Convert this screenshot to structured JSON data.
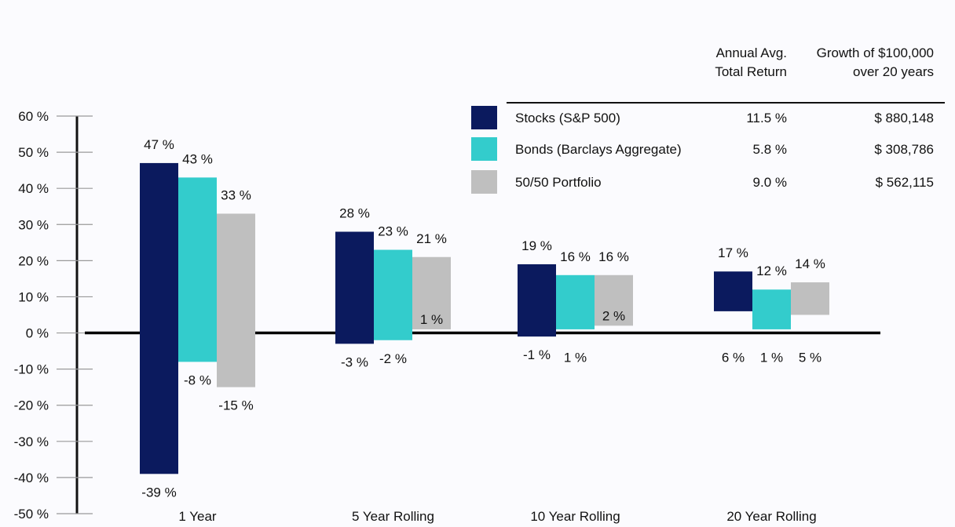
{
  "chart_data": {
    "type": "floating-bar",
    "title": "",
    "xlabel": "",
    "ylabel": "",
    "ylim": [
      -50,
      60
    ],
    "yticks": [
      "60 %",
      "50 %",
      "40 %",
      "30 %",
      "20 %",
      "10 %",
      "0 %",
      "-10 %",
      "-20 %",
      "-30 %",
      "-40 %",
      "-50 %"
    ],
    "categories": [
      "1 Year",
      "5 Year Rolling",
      "10 Year Rolling",
      "20 Year Rolling"
    ],
    "series": [
      {
        "name": "Stocks (S&P 500)",
        "color": "#0b1a5e",
        "highs": [
          47,
          28,
          19,
          17
        ],
        "lows": [
          -39,
          -3,
          -1,
          6
        ],
        "high_labels": [
          "47 %",
          "28 %",
          "19 %",
          "17 %"
        ],
        "low_labels": [
          "-39 %",
          "-3 %",
          "-1 %",
          "6 %"
        ]
      },
      {
        "name": "Bonds (Barclays Aggregate)",
        "color": "#33cccc",
        "highs": [
          43,
          23,
          16,
          12
        ],
        "lows": [
          -8,
          -2,
          1,
          1
        ],
        "high_labels": [
          "43 %",
          "23 %",
          "16 %",
          "12 %"
        ],
        "low_labels": [
          "-8 %",
          "-2 %",
          "1 %",
          "1 %"
        ]
      },
      {
        "name": "50/50 Portfolio",
        "color": "#bfbfbf",
        "highs": [
          33,
          21,
          16,
          14
        ],
        "lows": [
          -15,
          1,
          2,
          5
        ],
        "high_labels": [
          "33 %",
          "21 %",
          "16 %",
          "14 %"
        ],
        "low_labels": [
          "-15 %",
          "1 %",
          "2 %",
          "5 %"
        ]
      }
    ],
    "legend_table": {
      "header_return": [
        "Annual Avg.",
        "Total Return"
      ],
      "header_growth": [
        "Growth of $100,000",
        "over 20 years"
      ],
      "rows": [
        {
          "name": "Stocks (S&P 500)",
          "return": "11.5 %",
          "growth": "$ 880,148"
        },
        {
          "name": "Bonds (Barclays Aggregate)",
          "return": "5.8 %",
          "growth": "$ 308,786"
        },
        {
          "name": "50/50 Portfolio",
          "return": "9.0 %",
          "growth": "$ 562,115"
        }
      ]
    }
  }
}
